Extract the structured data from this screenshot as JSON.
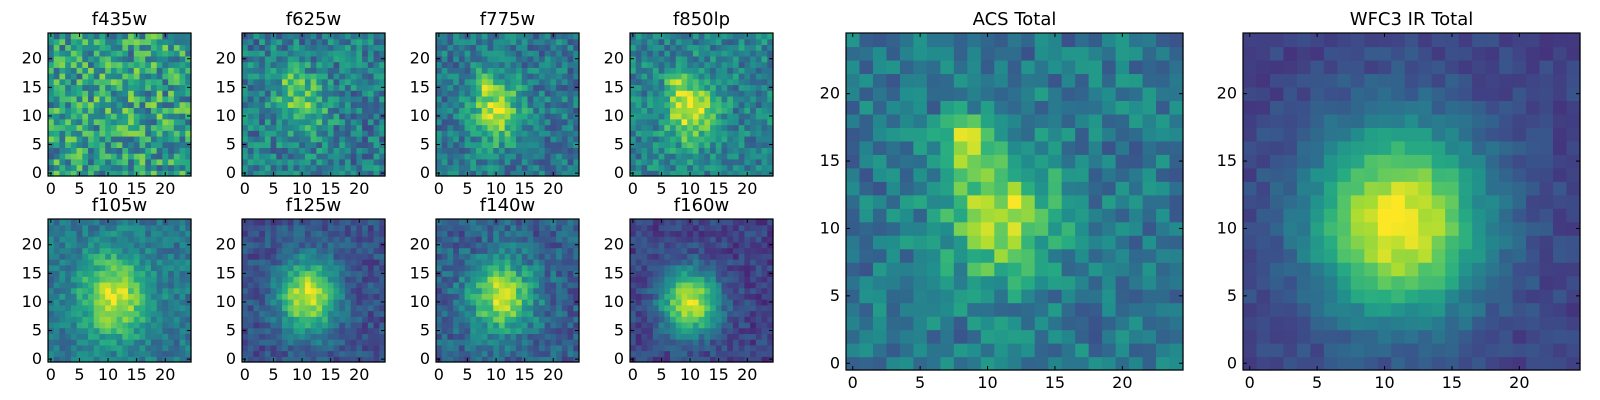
{
  "chart_data": [
    {
      "type": "heatmap",
      "title": "f435w",
      "colormap": "viridis",
      "image_size": [
        25,
        25
      ],
      "xlim": [
        0,
        24
      ],
      "ylim": [
        0,
        24
      ],
      "xticks": [
        "0",
        "5",
        "10",
        "15",
        "20"
      ],
      "yticks": [
        "0",
        "5",
        "10",
        "15",
        "20"
      ],
      "source": {
        "center": [
          12,
          12
        ],
        "sigma": [
          5,
          5
        ],
        "amplitude": 0.05,
        "noise": 0.55,
        "background": 0.55
      }
    },
    {
      "type": "heatmap",
      "title": "f625w",
      "colormap": "viridis",
      "image_size": [
        25,
        25
      ],
      "xlim": [
        0,
        24
      ],
      "ylim": [
        0,
        24
      ],
      "xticks": [
        "0",
        "5",
        "10",
        "15",
        "20"
      ],
      "yticks": [
        "0",
        "5",
        "10",
        "15",
        "20"
      ],
      "source": {
        "center": [
          10,
          12
        ],
        "sigma": [
          3,
          4
        ],
        "amplitude": 0.35,
        "noise": 0.4,
        "background": 0.42,
        "knot": [
          8,
          16,
          0.2
        ]
      }
    },
    {
      "type": "heatmap",
      "title": "f775w",
      "colormap": "viridis",
      "image_size": [
        25,
        25
      ],
      "xlim": [
        0,
        24
      ],
      "ylim": [
        0,
        24
      ],
      "xticks": [
        "0",
        "5",
        "10",
        "15",
        "20"
      ],
      "yticks": [
        "0",
        "5",
        "10",
        "15",
        "20"
      ],
      "source": {
        "center": [
          10,
          11
        ],
        "sigma": [
          3,
          4
        ],
        "amplitude": 0.5,
        "noise": 0.35,
        "background": 0.4,
        "knot": [
          8,
          16,
          0.3
        ]
      }
    },
    {
      "type": "heatmap",
      "title": "f850lp",
      "colormap": "viridis",
      "image_size": [
        25,
        25
      ],
      "xlim": [
        0,
        24
      ],
      "ylim": [
        0,
        24
      ],
      "xticks": [
        "0",
        "5",
        "10",
        "15",
        "20"
      ],
      "yticks": [
        "0",
        "5",
        "10",
        "15",
        "20"
      ],
      "source": {
        "center": [
          10,
          11
        ],
        "sigma": [
          3,
          4
        ],
        "amplitude": 0.5,
        "noise": 0.35,
        "background": 0.45,
        "knot": [
          8,
          16,
          0.25
        ]
      }
    },
    {
      "type": "heatmap",
      "title": "f105w",
      "colormap": "viridis",
      "image_size": [
        25,
        25
      ],
      "xlim": [
        0,
        24
      ],
      "ylim": [
        0,
        24
      ],
      "xticks": [
        "0",
        "5",
        "10",
        "15",
        "20"
      ],
      "yticks": [
        "0",
        "5",
        "10",
        "15",
        "20"
      ],
      "source": {
        "center": [
          11,
          11
        ],
        "sigma": [
          4,
          5
        ],
        "amplitude": 0.55,
        "noise": 0.25,
        "background": 0.4
      }
    },
    {
      "type": "heatmap",
      "title": "f125w",
      "colormap": "viridis",
      "image_size": [
        25,
        25
      ],
      "xlim": [
        0,
        24
      ],
      "ylim": [
        0,
        24
      ],
      "xticks": [
        "0",
        "5",
        "10",
        "15",
        "20"
      ],
      "yticks": [
        "0",
        "5",
        "10",
        "15",
        "20"
      ],
      "source": {
        "center": [
          11,
          11
        ],
        "sigma": [
          3.5,
          4.5
        ],
        "amplitude": 0.7,
        "noise": 0.22,
        "background": 0.25
      }
    },
    {
      "type": "heatmap",
      "title": "f140w",
      "colormap": "viridis",
      "image_size": [
        25,
        25
      ],
      "xlim": [
        0,
        24
      ],
      "ylim": [
        0,
        24
      ],
      "xticks": [
        "0",
        "5",
        "10",
        "15",
        "20"
      ],
      "yticks": [
        "0",
        "5",
        "10",
        "15",
        "20"
      ],
      "source": {
        "center": [
          11,
          11
        ],
        "sigma": [
          4,
          4.5
        ],
        "amplitude": 0.6,
        "noise": 0.28,
        "background": 0.3
      }
    },
    {
      "type": "heatmap",
      "title": "f160w",
      "colormap": "viridis",
      "image_size": [
        25,
        25
      ],
      "xlim": [
        0,
        24
      ],
      "ylim": [
        0,
        24
      ],
      "xticks": [
        "0",
        "5",
        "10",
        "15",
        "20"
      ],
      "yticks": [
        "0",
        "5",
        "10",
        "15",
        "20"
      ],
      "source": {
        "center": [
          10,
          10
        ],
        "sigma": [
          3.5,
          4
        ],
        "amplitude": 0.75,
        "noise": 0.2,
        "background": 0.2
      }
    },
    {
      "type": "heatmap",
      "title": "ACS Total",
      "colormap": "viridis",
      "image_size": [
        25,
        25
      ],
      "xlim": [
        0,
        24
      ],
      "ylim": [
        0,
        24
      ],
      "xticks": [
        "0",
        "5",
        "10",
        "15",
        "20"
      ],
      "yticks": [
        "0",
        "5",
        "10",
        "15",
        "20"
      ],
      "source": {
        "center": [
          11,
          11
        ],
        "sigma": [
          3,
          3.5
        ],
        "amplitude": 0.5,
        "noise": 0.3,
        "background": 0.4,
        "knot": [
          8.5,
          16.5,
          0.45
        ]
      }
    },
    {
      "type": "heatmap",
      "title": "WFC3 IR Total",
      "colormap": "viridis",
      "image_size": [
        25,
        25
      ],
      "xlim": [
        0,
        24
      ],
      "ylim": [
        0,
        24
      ],
      "xticks": [
        "0",
        "5",
        "10",
        "15",
        "20"
      ],
      "yticks": [
        "0",
        "5",
        "10",
        "15",
        "20"
      ],
      "source": {
        "center": [
          11,
          10.5
        ],
        "sigma": [
          4.5,
          5
        ],
        "amplitude": 0.8,
        "noise": 0.12,
        "background": 0.2
      }
    }
  ]
}
